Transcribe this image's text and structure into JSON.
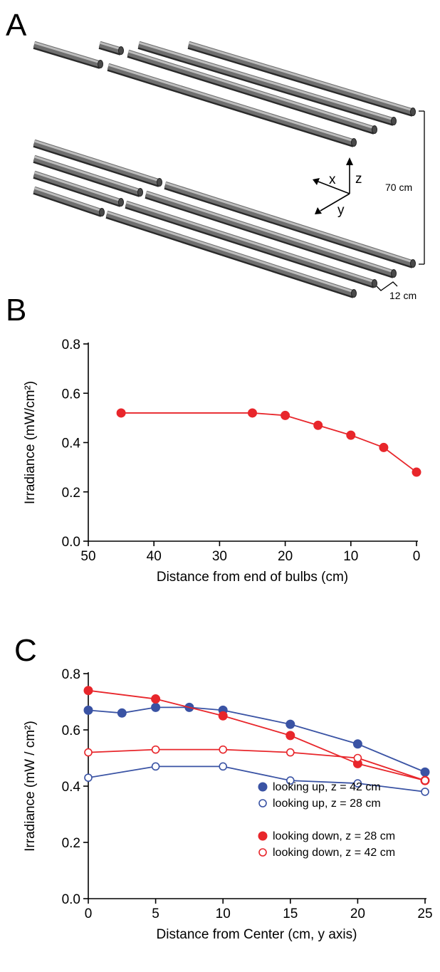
{
  "panels": {
    "a": {
      "letter": "A",
      "dim_height": "70 cm",
      "dim_spacing": "12 cm",
      "axes": {
        "x": "x",
        "y": "y",
        "z": "z"
      }
    },
    "b": {
      "letter": "B"
    },
    "c": {
      "letter": "C"
    }
  },
  "chart_data": [
    {
      "type": "line",
      "title": "",
      "xlabel": "Distance from end of bulbs (cm)",
      "ylabel": "Irradiance (mW/cm²)",
      "xlim": [
        50,
        0
      ],
      "ylim": [
        0,
        0.8
      ],
      "xticks": [
        50,
        40,
        30,
        20,
        10,
        0
      ],
      "yticks": [
        0.0,
        0.2,
        0.4,
        0.6,
        0.8
      ],
      "xtick_labels": [
        "50",
        "40",
        "30",
        "20",
        "10",
        "0"
      ],
      "ytick_labels": [
        "0.0",
        "0.2",
        "0.4",
        "0.6",
        "0.8"
      ],
      "grid": false,
      "series": [
        {
          "color": "#e8262b",
          "marker": "filled",
          "x": [
            45,
            25,
            20,
            15,
            10,
            5,
            0
          ],
          "y": [
            0.52,
            0.52,
            0.51,
            0.47,
            0.43,
            0.38,
            0.28
          ]
        }
      ]
    },
    {
      "type": "line",
      "title": "",
      "xlabel": "Distance from Center (cm, y axis)",
      "ylabel": "Irradiance (mW / cm²)",
      "xlim": [
        0,
        25
      ],
      "ylim": [
        0,
        0.8
      ],
      "xticks": [
        0,
        5,
        10,
        15,
        20,
        25
      ],
      "yticks": [
        0.0,
        0.2,
        0.4,
        0.6,
        0.8
      ],
      "xtick_labels": [
        "0",
        "5",
        "10",
        "15",
        "20",
        "25"
      ],
      "ytick_labels": [
        "0.0",
        "0.2",
        "0.4",
        "0.6",
        "0.8"
      ],
      "grid": false,
      "legend_position": "bottom-right",
      "series": [
        {
          "name": "looking up, z = 42 cm",
          "color": "#3a53a4",
          "marker": "filled",
          "x": [
            0,
            2.5,
            5,
            7.5,
            10,
            15,
            20,
            25
          ],
          "y": [
            0.67,
            0.66,
            0.68,
            0.68,
            0.67,
            0.62,
            0.55,
            0.45
          ]
        },
        {
          "name": "looking up, z = 28 cm",
          "color": "#3a53a4",
          "marker": "open",
          "x": [
            0,
            5,
            10,
            15,
            20,
            25
          ],
          "y": [
            0.43,
            0.47,
            0.47,
            0.42,
            0.41,
            0.38
          ]
        },
        {
          "name": "looking down, z = 28 cm",
          "color": "#e8262b",
          "marker": "filled",
          "x": [
            0,
            5,
            10,
            15,
            20,
            25
          ],
          "y": [
            0.74,
            0.71,
            0.65,
            0.58,
            0.48,
            0.42
          ]
        },
        {
          "name": "looking down, z = 42 cm",
          "color": "#e8262b",
          "marker": "open",
          "x": [
            0,
            5,
            10,
            15,
            20,
            25
          ],
          "y": [
            0.52,
            0.53,
            0.53,
            0.52,
            0.5,
            0.42
          ]
        }
      ]
    }
  ]
}
